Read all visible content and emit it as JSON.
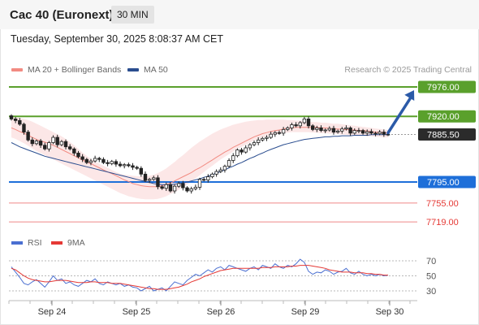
{
  "header": {
    "title": "Cac 40 (Euronext)",
    "interval": "30 MIN"
  },
  "datetime": "Tuesday, September 30, 2025 8:08:37 AM CET",
  "legend": {
    "ma20_label": "MA 20 + Bollinger Bands",
    "ma20_color": "#f28b82",
    "ma50_label": "MA 50",
    "ma50_color": "#2a4d8f"
  },
  "credit": "Research © 2025 Trading Central",
  "rsi_legend": {
    "rsi_label": "RSI",
    "rsi_color": "#4a6fd1",
    "ma_label": "9MA",
    "ma_color": "#e53935"
  },
  "chart_data": {
    "type": "candlestick",
    "instrument": "Cac 40 (Euronext)",
    "interval": "30 MIN",
    "x_tick_labels": [
      "Sep 24",
      "Sep 25",
      "Sep 26",
      "Sep 29",
      "Sep 30"
    ],
    "levels": [
      {
        "value": 7976.0,
        "label": "7976.00",
        "kind": "target",
        "color": "#5aa02c"
      },
      {
        "value": 7920.0,
        "label": "7920.00",
        "kind": "resistance",
        "color": "#5aa02c"
      },
      {
        "value": 7885.5,
        "label": "7885.50",
        "kind": "last-price",
        "color": "#2b2b2b"
      },
      {
        "value": 7795.0,
        "label": "7795.00",
        "kind": "pivot",
        "color": "#1e6fd9"
      },
      {
        "value": 7755.0,
        "label": "7755.00",
        "kind": "support",
        "color": "#e53935"
      },
      {
        "value": 7719.0,
        "label": "7719.00",
        "kind": "support",
        "color": "#e53935"
      }
    ],
    "closes": [
      7915,
      7912,
      7905,
      7890,
      7875,
      7868,
      7873,
      7865,
      7858,
      7870,
      7880,
      7866,
      7872,
      7862,
      7858,
      7850,
      7843,
      7838,
      7832,
      7835,
      7840,
      7838,
      7832,
      7830,
      7834,
      7829,
      7826,
      7828,
      7826,
      7823,
      7821,
      7810,
      7798,
      7800,
      7803,
      7786,
      7783,
      7790,
      7778,
      7787,
      7792,
      7784,
      7778,
      7782,
      7785,
      7800,
      7799,
      7805,
      7810,
      7815,
      7818,
      7825,
      7836,
      7845,
      7856,
      7852,
      7860,
      7866,
      7870,
      7875,
      7878,
      7880,
      7886,
      7889,
      7888,
      7895,
      7898,
      7904,
      7902,
      7908,
      7915,
      7902,
      7895,
      7898,
      7893,
      7894,
      7897,
      7890,
      7892,
      7896,
      7898,
      7888,
      7893,
      7893,
      7888,
      7891,
      7888,
      7887,
      7890,
      7886,
      7885.5
    ],
    "ma20": [
      7898,
      7895,
      7891,
      7888,
      7884,
      7880,
      7876,
      7873,
      7871,
      7868,
      7865,
      7861,
      7857,
      7853,
      7849,
      7845,
      7841,
      7837,
      7833,
      7830,
      7826,
      7822,
      7818,
      7814,
      7811,
      7807,
      7803,
      7799,
      7796,
      7792,
      7790,
      7788,
      7787,
      7786,
      7786,
      7786,
      7788,
      7790,
      7793,
      7797,
      7801,
      7805,
      7809,
      7813,
      7818,
      7822,
      7827,
      7832,
      7837,
      7842,
      7847,
      7852,
      7856,
      7861,
      7865,
      7869,
      7873,
      7877,
      7881,
      7884,
      7887,
      7889,
      7891,
      7893,
      7894,
      7896,
      7897,
      7898,
      7899,
      7899,
      7899,
      7899,
      7899,
      7899,
      7898,
      7898,
      7897,
      7896,
      7896,
      7895,
      7895,
      7894,
      7894,
      7893,
      7893,
      7892,
      7891,
      7890,
      7890,
      7889,
      7888
    ],
    "bb_upper": [
      7918,
      7918,
      7917,
      7915,
      7913,
      7910,
      7906,
      7902,
      7898,
      7894,
      7890,
      7886,
      7882,
      7877,
      7871,
      7865,
      7858,
      7851,
      7845,
      7839,
      7834,
      7830,
      7826,
      7822,
      7818,
      7814,
      7811,
      7809,
      7808,
      7807,
      7806,
      7806,
      7806,
      7807,
      7809,
      7812,
      7816,
      7821,
      7827,
      7833,
      7840,
      7846,
      7853,
      7860,
      7866,
      7872,
      7877,
      7882,
      7887,
      7891,
      7895,
      7898,
      7901,
      7904,
      7906,
      7908,
      7910,
      7911,
      7912,
      7913,
      7913,
      7914,
      7914,
      7914,
      7914,
      7914,
      7913,
      7913,
      7912,
      7912,
      7911,
      7910,
      7909,
      7909,
      7908,
      7908,
      7907,
      7906,
      7906,
      7905,
      7904,
      7903,
      7902,
      7901,
      7900,
      7899,
      7898,
      7897,
      7896,
      7895,
      7894
    ],
    "bb_lower": [
      7880,
      7877,
      7873,
      7869,
      7864,
      7859,
      7854,
      7850,
      7846,
      7842,
      7838,
      7834,
      7830,
      7826,
      7822,
      7818,
      7814,
      7810,
      7806,
      7802,
      7798,
      7794,
      7790,
      7786,
      7782,
      7778,
      7774,
      7771,
      7768,
      7766,
      7764,
      7763,
      7762,
      7762,
      7762,
      7763,
      7765,
      7768,
      7772,
      7776,
      7780,
      7785,
      7790,
      7796,
      7802,
      7808,
      7814,
      7820,
      7826,
      7832,
      7838,
      7843,
      7848,
      7853,
      7858,
      7862,
      7866,
      7870,
      7874,
      7877,
      7880,
      7882,
      7884,
      7886,
      7887,
      7888,
      7889,
      7890,
      7890,
      7890,
      7890,
      7890,
      7889,
      7889,
      7888,
      7888,
      7887,
      7887,
      7886,
      7885,
      7885,
      7884,
      7884,
      7883,
      7883,
      7882,
      7882,
      7881,
      7881,
      7880,
      7880
    ],
    "ma50": [
      7870,
      7866,
      7862,
      7859,
      7856,
      7853,
      7850,
      7847,
      7844,
      7842,
      7840,
      7838,
      7836,
      7834,
      7832,
      7830,
      7828,
      7826,
      7824,
      7822,
      7820,
      7818,
      7816,
      7814,
      7812,
      7810,
      7808,
      7806,
      7804,
      7802,
      7800,
      7798,
      7796,
      7794,
      7792,
      7791,
      7790,
      7790,
      7790,
      7791,
      7792,
      7793,
      7795,
      7797,
      7799,
      7801,
      7804,
      7806,
      7809,
      7812,
      7815,
      7818,
      7822,
      7825,
      7829,
      7832,
      7836,
      7840,
      7843,
      7847,
      7850,
      7854,
      7857,
      7860,
      7863,
      7866,
      7868,
      7870,
      7872,
      7874,
      7876,
      7877,
      7878,
      7879,
      7880,
      7881,
      7881,
      7882,
      7882,
      7883,
      7883,
      7883,
      7884,
      7884,
      7884,
      7884,
      7885,
      7885,
      7885,
      7885,
      7885
    ],
    "rsi": {
      "levels": [
        70,
        50,
        30
      ],
      "rsi": [
        62,
        55,
        48,
        40,
        38,
        42,
        45,
        40,
        35,
        42,
        50,
        44,
        46,
        40,
        42,
        38,
        36,
        40,
        44,
        42,
        46,
        40,
        38,
        42,
        40,
        38,
        40,
        36,
        38,
        35,
        34,
        30,
        33,
        36,
        30,
        32,
        34,
        30,
        36,
        42,
        40,
        38,
        44,
        48,
        52,
        50,
        54,
        58,
        55,
        60,
        62,
        58,
        64,
        62,
        60,
        58,
        56,
        60,
        62,
        58,
        64,
        62,
        60,
        66,
        62,
        60,
        64,
        62,
        66,
        72,
        68,
        56,
        52,
        55,
        54,
        58,
        56,
        52,
        55,
        56,
        60,
        54,
        52,
        56,
        52,
        50,
        52,
        50,
        52,
        50,
        51
      ],
      "ma9": [
        60,
        58,
        54,
        50,
        47,
        45,
        44,
        43,
        42,
        42,
        43,
        44,
        44,
        44,
        43,
        42,
        41,
        41,
        41,
        42,
        42,
        41,
        41,
        41,
        40,
        40,
        40,
        39,
        38,
        37,
        36,
        35,
        34,
        33,
        33,
        32,
        32,
        32,
        33,
        34,
        35,
        37,
        39,
        42,
        44,
        46,
        49,
        51,
        53,
        55,
        57,
        58,
        59,
        60,
        60,
        60,
        60,
        60,
        60,
        60,
        61,
        61,
        61,
        62,
        62,
        62,
        62,
        63,
        63,
        64,
        64,
        64,
        63,
        62,
        61,
        60,
        58,
        57,
        56,
        55,
        55,
        55,
        54,
        54,
        54,
        53,
        53,
        52,
        52,
        51,
        51
      ]
    }
  }
}
